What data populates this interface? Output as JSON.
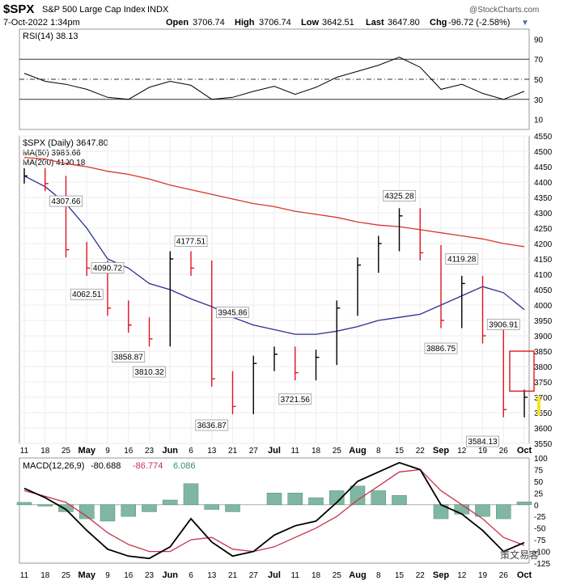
{
  "header": {
    "symbol": "$SPX",
    "name": "S&P 500 Large Cap Index",
    "exchange": "INDX",
    "watermark": "@StockCharts.com",
    "date": "7-Oct-2022 1:34pm",
    "open_label": "Open",
    "open": "3706.74",
    "high_label": "High",
    "high": "3706.74",
    "low_label": "Low",
    "low": "3642.51",
    "last_label": "Last",
    "last": "3647.80",
    "chg_label": "Chg",
    "chg": "-96.72 (-2.58%)",
    "chg_arrow": "▼"
  },
  "colors": {
    "price_up": "#000000",
    "price_down": "#e0141e",
    "ma50": "#2a2f8f",
    "ma200": "#d6362c",
    "macd_line": "#000000",
    "signal_line": "#c8324e",
    "histogram": "#7fb7a2",
    "highlight": "#f5e51c"
  },
  "rsi_panel": {
    "label": "RSI(14) 38.13",
    "ticks": [
      10,
      30,
      50,
      70,
      90
    ]
  },
  "price_panel": {
    "label": "$SPX (Daily) 3647.80",
    "ma50_label": "MA(50) 3985.66",
    "ma200_label": "MA(200) 4190.18",
    "ticks": [
      3550,
      3600,
      3650,
      3700,
      3750,
      3800,
      3850,
      3900,
      3950,
      4000,
      4050,
      4100,
      4150,
      4200,
      4250,
      4300,
      4350,
      4400,
      4450,
      4500,
      4550
    ],
    "annotations": [
      "4307.66",
      "4062.51",
      "4090.72",
      "3858.87",
      "3810.32",
      "4177.51",
      "3945.86",
      "3636.87",
      "3721.56",
      "4325.28",
      "4119.28",
      "3886.75",
      "3906.91",
      "3584.13"
    ]
  },
  "macd_panel": {
    "label": "MACD(12,26,9)",
    "macd": "-80.688",
    "signal": "-86.774",
    "histogram": "6.086",
    "ticks": [
      -125,
      -100,
      -75,
      -50,
      -25,
      0,
      25,
      50,
      75,
      100
    ]
  },
  "x_axis": {
    "labels": [
      "11",
      "18",
      "25",
      "May",
      "9",
      "16",
      "23",
      "Jun",
      "6",
      "13",
      "21",
      "27",
      "Jul",
      "11",
      "18",
      "25",
      "Aug",
      "8",
      "15",
      "22",
      "Sep",
      "12",
      "19",
      "26",
      "Oct"
    ]
  },
  "footer": {
    "watermark_logo": "策文易客"
  },
  "chart_data": {
    "type": "line",
    "title": "$SPX S&P 500 Large Cap Index INDX",
    "x": [
      "11",
      "18",
      "25",
      "May",
      "9",
      "16",
      "23",
      "Jun",
      "6",
      "13",
      "21",
      "27",
      "Jul",
      "11",
      "18",
      "25",
      "Aug",
      "8",
      "15",
      "22",
      "Sep",
      "12",
      "19",
      "26",
      "Oct"
    ],
    "ylim": [
      3550,
      4550
    ],
    "series": [
      {
        "name": "$SPX (Daily)",
        "values": [
          4420,
          4395,
          4180,
          4120,
          3990,
          3935,
          3890,
          4150,
          4120,
          3760,
          3670,
          3810,
          3840,
          3780,
          3830,
          3990,
          4130,
          4200,
          4290,
          4170,
          3950,
          4070,
          3900,
          3660,
          3700
        ]
      },
      {
        "name": "MA(50)",
        "values": [
          4420,
          4385,
          4330,
          4250,
          4150,
          4120,
          4070,
          4050,
          4020,
          3995,
          3960,
          3935,
          3920,
          3905,
          3905,
          3915,
          3930,
          3950,
          3960,
          3970,
          4000,
          4030,
          4060,
          4040,
          3985
        ]
      },
      {
        "name": "MA(200)",
        "values": [
          4480,
          4475,
          4460,
          4450,
          4435,
          4425,
          4410,
          4390,
          4375,
          4360,
          4345,
          4330,
          4320,
          4305,
          4295,
          4285,
          4270,
          4260,
          4255,
          4245,
          4235,
          4225,
          4215,
          4200,
          4190
        ]
      }
    ],
    "rsi": {
      "name": "RSI(14)",
      "ylim": [
        0,
        100
      ],
      "values": [
        56,
        48,
        45,
        40,
        32,
        30,
        42,
        48,
        44,
        30,
        32,
        38,
        43,
        35,
        42,
        52,
        58,
        64,
        72,
        62,
        40,
        45,
        36,
        30,
        38
      ]
    },
    "macd": {
      "ylim": [
        -125,
        100
      ],
      "macd": [
        35,
        15,
        -10,
        -55,
        -95,
        -110,
        -115,
        -90,
        -30,
        -80,
        -110,
        -100,
        -65,
        -45,
        -35,
        5,
        50,
        70,
        90,
        75,
        0,
        -20,
        -55,
        -100,
        -81
      ],
      "signal": [
        30,
        18,
        5,
        -25,
        -60,
        -85,
        -100,
        -100,
        -75,
        -70,
        -95,
        -100,
        -90,
        -70,
        -50,
        -25,
        10,
        40,
        70,
        75,
        30,
        0,
        -30,
        -70,
        -87
      ],
      "histogram": [
        5,
        -3,
        -15,
        -30,
        -35,
        -25,
        -15,
        10,
        45,
        -10,
        -15,
        0,
        25,
        25,
        15,
        30,
        40,
        30,
        20,
        0,
        -30,
        -20,
        -25,
        -30,
        6
      ]
    }
  }
}
